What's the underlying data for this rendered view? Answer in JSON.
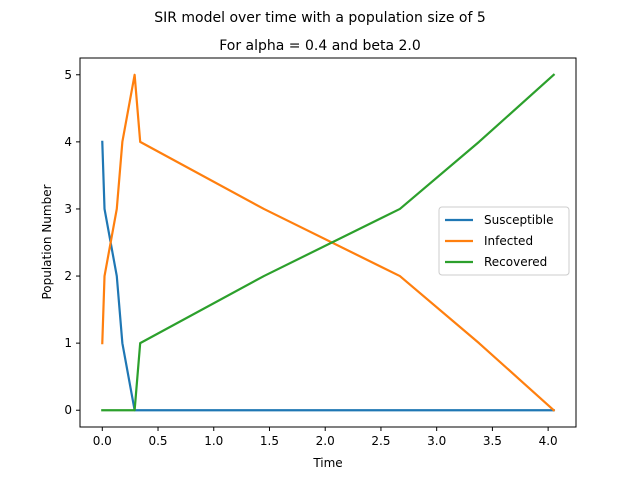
{
  "chart_data": {
    "type": "line",
    "suptitle": "SIR model over time with a population size of 5",
    "title": "For alpha = 0.4 and beta 2.0",
    "xlabel": "Time",
    "ylabel": "Population Number",
    "xlim": [
      -0.2,
      4.25
    ],
    "ylim": [
      -0.25,
      5.25
    ],
    "xticks": [
      0.0,
      0.5,
      1.0,
      1.5,
      2.0,
      2.5,
      3.0,
      3.5,
      4.0
    ],
    "xtick_labels": [
      "0.0",
      "0.5",
      "1.0",
      "1.5",
      "2.0",
      "2.5",
      "3.0",
      "3.5",
      "4.0"
    ],
    "yticks": [
      0,
      1,
      2,
      3,
      4,
      5
    ],
    "ytick_labels": [
      "0",
      "1",
      "2",
      "3",
      "4",
      "5"
    ],
    "grid": false,
    "legend_position": "right",
    "series": [
      {
        "name": "Susceptible",
        "color": "#1f77b4",
        "x": [
          0.0,
          0.02,
          0.13,
          0.18,
          0.29,
          4.05
        ],
        "y": [
          4,
          3,
          2,
          1,
          0,
          0
        ]
      },
      {
        "name": "Infected",
        "color": "#ff7f0e",
        "x": [
          0.0,
          0.02,
          0.13,
          0.18,
          0.29,
          0.34,
          1.45,
          2.67,
          3.38,
          4.05
        ],
        "y": [
          1,
          2,
          3,
          4,
          5,
          4,
          3,
          2,
          1,
          0
        ]
      },
      {
        "name": "Recovered",
        "color": "#2ca02c",
        "x": [
          0.0,
          0.29,
          0.34,
          1.45,
          2.67,
          3.38,
          4.05
        ],
        "y": [
          0,
          0,
          1,
          2,
          3,
          4,
          5
        ]
      }
    ]
  }
}
